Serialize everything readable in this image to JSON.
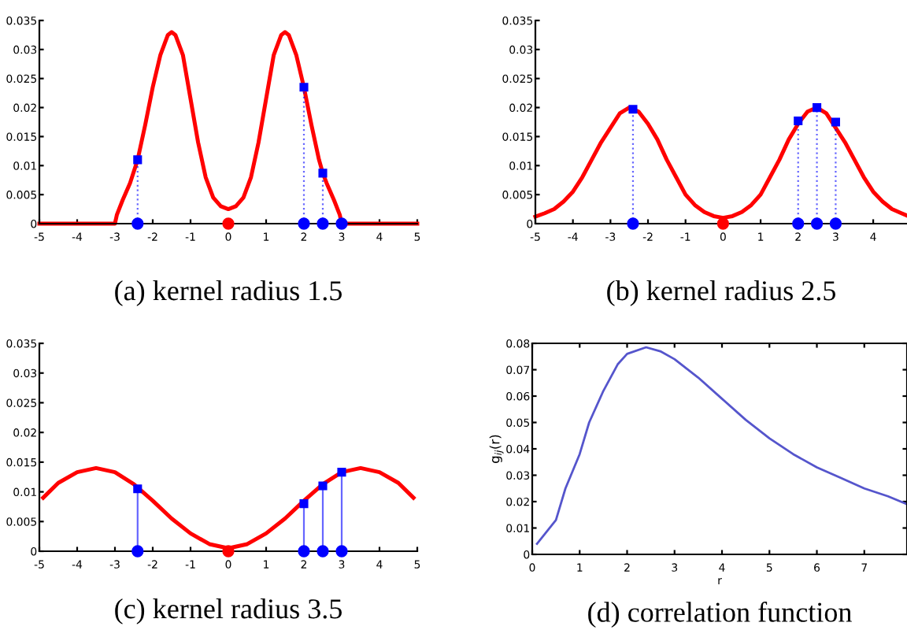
{
  "chart_data": [
    {
      "type": "line",
      "title": "(a) kernel radius 1.5",
      "xlim": [
        -5,
        5
      ],
      "xticks": [
        -5,
        -4,
        -3,
        -2,
        -1,
        0,
        1,
        2,
        3,
        4,
        5
      ],
      "ylim": [
        0,
        0.035
      ],
      "yticks": [
        0,
        0.005,
        0.01,
        0.015,
        0.02,
        0.025,
        0.03,
        0.035
      ],
      "grid": false,
      "legend": false,
      "series": [
        {
          "type": "line",
          "color": "#ff0000",
          "x": [
            -5,
            -3,
            -2.95,
            -2.8,
            -2.6,
            -2.4,
            -2.2,
            -2,
            -1.8,
            -1.6,
            -1.5,
            -1.4,
            -1.2,
            -1,
            -0.8,
            -0.6,
            -0.4,
            -0.2,
            0,
            0.2,
            0.4,
            0.6,
            0.8,
            1,
            1.2,
            1.4,
            1.5,
            1.6,
            1.8,
            2,
            2.2,
            2.4,
            2.5,
            2.6,
            2.8,
            2.95,
            3,
            5
          ],
          "values": [
            0,
            0,
            0.0015,
            0.004,
            0.007,
            0.011,
            0.017,
            0.0235,
            0.029,
            0.0325,
            0.033,
            0.0325,
            0.029,
            0.0215,
            0.014,
            0.008,
            0.0045,
            0.003,
            0.0025,
            0.003,
            0.0045,
            0.008,
            0.014,
            0.0215,
            0.029,
            0.0325,
            0.033,
            0.0325,
            0.029,
            0.0235,
            0.017,
            0.011,
            0.0087,
            0.007,
            0.004,
            0.0015,
            0,
            0
          ]
        },
        {
          "type": "lollipop",
          "color": "#0000ff",
          "line_style": "dotted",
          "marker": "square",
          "x": [
            -2.4,
            2,
            2.5
          ],
          "values": [
            0.011,
            0.0235,
            0.0087
          ]
        },
        {
          "type": "scatter",
          "color": "#0000ff",
          "marker": "circle",
          "x": [
            -2.4,
            2,
            2.5,
            3
          ],
          "values": [
            0,
            0,
            0,
            0
          ]
        },
        {
          "type": "scatter",
          "color": "#ff0000",
          "marker": "circle",
          "x": [
            0
          ],
          "values": [
            0
          ]
        }
      ]
    },
    {
      "type": "line",
      "title": "(b) kernel radius 2.5",
      "xlim": [
        -5,
        4.9
      ],
      "xticks": [
        -5,
        -4,
        -3,
        -2,
        -1,
        0,
        1,
        2,
        3,
        4
      ],
      "ylim": [
        0,
        0.035
      ],
      "yticks": [
        0,
        0.005,
        0.01,
        0.015,
        0.02,
        0.025,
        0.03,
        0.035
      ],
      "grid": false,
      "legend": false,
      "series": [
        {
          "type": "line",
          "color": "#ff0000",
          "x": [
            -5,
            -4.75,
            -4.5,
            -4.25,
            -4,
            -3.75,
            -3.5,
            -3.25,
            -3,
            -2.75,
            -2.5,
            -2.25,
            -2,
            -1.75,
            -1.5,
            -1.25,
            -1,
            -0.75,
            -0.5,
            -0.25,
            0,
            0.25,
            0.5,
            0.75,
            1,
            1.25,
            1.5,
            1.75,
            2,
            2.25,
            2.5,
            2.75,
            3,
            3.25,
            3.5,
            3.75,
            4,
            4.25,
            4.5,
            4.75,
            4.9
          ],
          "values": [
            0.0012,
            0.0018,
            0.0025,
            0.0038,
            0.0055,
            0.008,
            0.011,
            0.014,
            0.0165,
            0.019,
            0.02,
            0.0193,
            0.0172,
            0.0145,
            0.011,
            0.008,
            0.005,
            0.0032,
            0.002,
            0.0013,
            0.001,
            0.0013,
            0.002,
            0.0032,
            0.005,
            0.008,
            0.011,
            0.0145,
            0.0172,
            0.0193,
            0.02,
            0.019,
            0.0165,
            0.014,
            0.011,
            0.008,
            0.0055,
            0.0038,
            0.0025,
            0.0018,
            0.0014
          ]
        },
        {
          "type": "lollipop",
          "color": "#0000ff",
          "line_style": "dotted",
          "marker": "square",
          "x": [
            -2.4,
            2,
            2.5,
            3
          ],
          "values": [
            0.0197,
            0.0177,
            0.02,
            0.0175
          ]
        },
        {
          "type": "scatter",
          "color": "#0000ff",
          "marker": "circle",
          "x": [
            -2.4,
            2,
            2.5,
            3
          ],
          "values": [
            0,
            0,
            0,
            0
          ]
        },
        {
          "type": "scatter",
          "color": "#ff0000",
          "marker": "circle",
          "x": [
            0
          ],
          "values": [
            0
          ]
        }
      ]
    },
    {
      "type": "line",
      "title": "(c) kernel radius 3.5",
      "xlim": [
        -5,
        5
      ],
      "xticks": [
        -5,
        -4,
        -3,
        -2,
        -1,
        0,
        1,
        2,
        3,
        4,
        5
      ],
      "ylim": [
        0,
        0.035
      ],
      "yticks": [
        0,
        0.005,
        0.01,
        0.015,
        0.02,
        0.025,
        0.03,
        0.035
      ],
      "grid": false,
      "legend": false,
      "series": [
        {
          "type": "line",
          "color": "#ff0000",
          "x": [
            -4.9,
            -4.5,
            -4,
            -3.5,
            -3,
            -2.5,
            -2,
            -1.5,
            -1,
            -0.5,
            0,
            0.5,
            1,
            1.5,
            2,
            2.5,
            3,
            3.5,
            4,
            4.5,
            4.9
          ],
          "values": [
            0.009,
            0.0115,
            0.0133,
            0.014,
            0.0133,
            0.0113,
            0.0085,
            0.0055,
            0.003,
            0.0012,
            0.0005,
            0.0012,
            0.003,
            0.0055,
            0.0085,
            0.0113,
            0.0133,
            0.014,
            0.0133,
            0.0115,
            0.009
          ]
        },
        {
          "type": "lollipop",
          "color": "#0000ff",
          "line_style": "solid",
          "marker": "square",
          "x": [
            -2.4,
            2,
            2.5,
            3
          ],
          "values": [
            0.0105,
            0.008,
            0.011,
            0.0133
          ]
        },
        {
          "type": "scatter",
          "color": "#0000ff",
          "marker": "circle",
          "x": [
            -2.4,
            2,
            2.5,
            3
          ],
          "values": [
            0,
            0,
            0,
            0
          ]
        },
        {
          "type": "scatter",
          "color": "#ff0000",
          "marker": "circle",
          "x": [
            0
          ],
          "values": [
            0
          ]
        }
      ]
    },
    {
      "type": "line",
      "title": "(d) correlation function",
      "xlabel": "r",
      "ylabel": "g$_{ij}$(r)",
      "xlim": [
        0,
        7.9
      ],
      "xticks": [
        0,
        1,
        2,
        3,
        4,
        5,
        6,
        7
      ],
      "ylim": [
        0,
        0.08
      ],
      "yticks": [
        0,
        0.01,
        0.02,
        0.03,
        0.04,
        0.05,
        0.06,
        0.07,
        0.08
      ],
      "grid": false,
      "legend": false,
      "series": [
        {
          "type": "line",
          "color": "#5555cc",
          "x": [
            0.1,
            0.5,
            0.7,
            1,
            1.2,
            1.5,
            1.8,
            2,
            2.4,
            2.7,
            3,
            3.5,
            4,
            4.5,
            5,
            5.5,
            6,
            6.5,
            7,
            7.5,
            7.9
          ],
          "values": [
            0.004,
            0.013,
            0.025,
            0.038,
            0.05,
            0.062,
            0.072,
            0.076,
            0.0785,
            0.077,
            0.074,
            0.067,
            0.059,
            0.051,
            0.044,
            0.038,
            0.033,
            0.029,
            0.025,
            0.022,
            0.019
          ]
        }
      ]
    }
  ]
}
